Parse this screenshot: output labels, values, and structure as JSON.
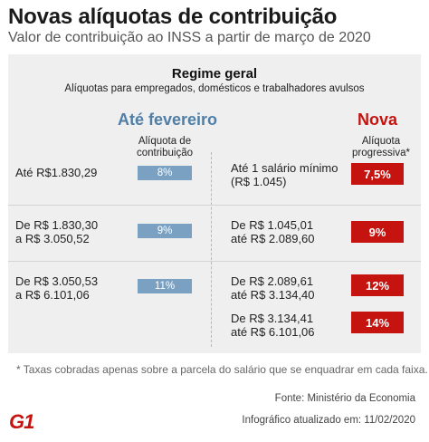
{
  "header": {
    "title": "Novas alíquotas de contribuição",
    "subtitle": "Valor de contribuição ao INSS a partir de março de 2020"
  },
  "regime": {
    "title": "Regime geral",
    "subtitle": "Alíquotas para empregados, domésticos e trabalhadores avulsos"
  },
  "left": {
    "heading": "Até fevereiro",
    "subheading": "Alíquota de contribuição",
    "rows": [
      {
        "range": "Até R$1.830,29",
        "rate": "8%"
      },
      {
        "range_line1": "De R$ 1.830,30",
        "range_line2": "a R$ 3.050,52",
        "rate": "9%"
      },
      {
        "range_line1": "De R$ 3.050,53",
        "range_line2": "a R$ 6.101,06",
        "rate": "11%"
      }
    ]
  },
  "right": {
    "heading": "Nova",
    "subheading": "Alíquota progressiva*",
    "rows": [
      {
        "range_line1": "Até 1 salário mínimo",
        "range_line2": "(R$ 1.045)",
        "rate": "7,5%"
      },
      {
        "range_line1": "De R$ 1.045,01",
        "range_line2": "até R$ 2.089,60",
        "rate": "9%"
      },
      {
        "range_line1": "De R$ 2.089,61",
        "range_line2": "até R$ 3.134,40",
        "rate": "12%"
      },
      {
        "range_line1": "De R$ 3.134,41",
        "range_line2": "até R$ 6.101,06",
        "rate": "14%"
      }
    ]
  },
  "footnote": "* Taxas cobradas apenas sobre a parcela do salário que se enquadrar em cada faixa.",
  "source": "Fonte: Ministério da Economia",
  "updated": "Infográfico atualizado em: 11/02/2020",
  "logo": {
    "text": "G1",
    "color": "#c5130f"
  },
  "colors": {
    "old_accent": "#7aa0c2",
    "old_heading": "#4f7ea6",
    "new_accent": "#c5130f",
    "panel": "#efefef"
  }
}
